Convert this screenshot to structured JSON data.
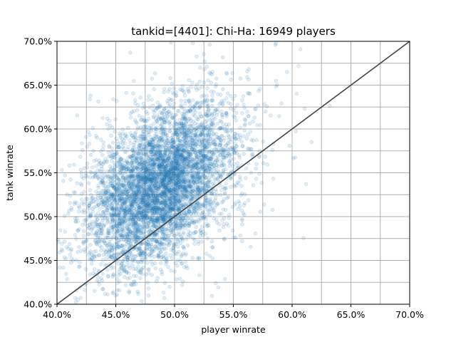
{
  "chart_data": {
    "type": "scatter",
    "title": "tankid=[4401]: Chi-Ha: 16949 players",
    "xlabel": "player winrate",
    "ylabel": "tank winrate",
    "xlim": [
      0.4,
      0.7
    ],
    "ylim": [
      0.4,
      0.7
    ],
    "x_ticks": [
      0.4,
      0.45,
      0.5,
      0.55,
      0.6,
      0.65,
      0.7
    ],
    "y_ticks": [
      0.4,
      0.45,
      0.5,
      0.55,
      0.6,
      0.65,
      0.7
    ],
    "x_tick_labels": [
      "40.0%",
      "45.0%",
      "50.0%",
      "55.0%",
      "60.0%",
      "65.0%",
      "70.0%"
    ],
    "y_tick_labels": [
      "40.0%",
      "45.0%",
      "50.0%",
      "55.0%",
      "60.0%",
      "65.0%",
      "70.0%"
    ],
    "grid": true,
    "minor_grid_step": 0.025,
    "point_count": 16949,
    "cloud": {
      "center_x": 0.488,
      "center_y": 0.535,
      "std_x": 0.03,
      "std_y": 0.045,
      "correlation": 0.45
    },
    "reference_line": {
      "from": [
        0.4,
        0.4
      ],
      "to": [
        0.7,
        0.7
      ],
      "label": "y = x"
    },
    "colors": {
      "points": "#1f77b4",
      "reference_line": "#444444",
      "grid": "#b0b0b0"
    }
  }
}
